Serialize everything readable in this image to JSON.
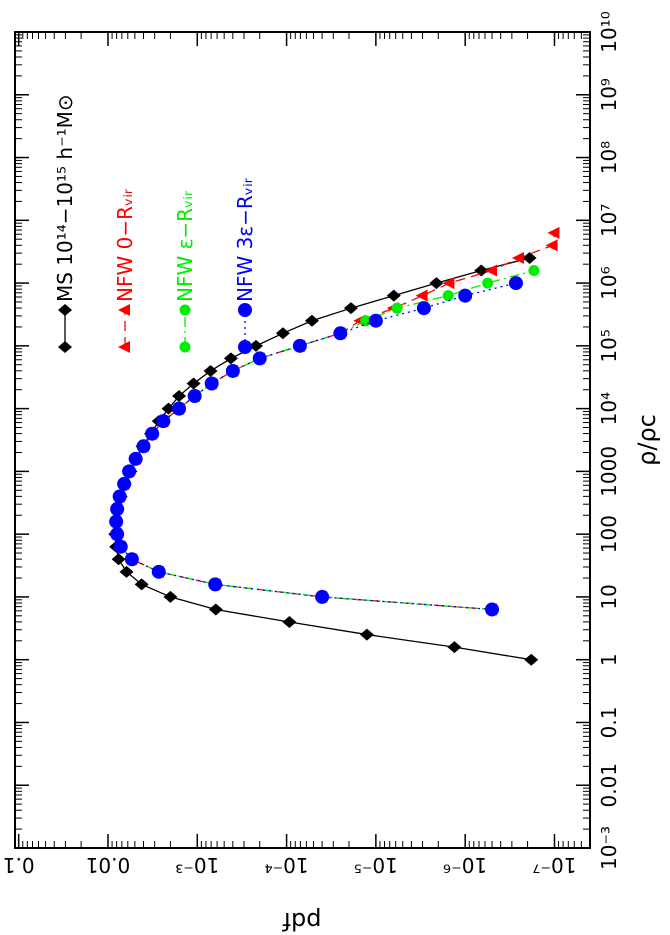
{
  "chart_data": {
    "type": "line",
    "x_label": "ρ/ρc",
    "y_label": "pdf",
    "xlog": true,
    "ylog": true,
    "xlim": [
      0.001,
      10000000000
    ],
    "ylim": [
      4e-08,
      0.11
    ],
    "xticks": [
      {
        "value": 0.001,
        "label": "10⁻³"
      },
      0.01,
      0.1,
      1,
      10,
      100,
      1000,
      {
        "value": 10000,
        "label": "10⁴"
      },
      {
        "value": 100000,
        "label": "10⁵"
      },
      {
        "value": 1000000,
        "label": "10⁶"
      },
      {
        "value": 10000000,
        "label": "10⁷"
      },
      {
        "value": 100000000,
        "label": "10⁸"
      },
      {
        "value": 1000000000,
        "label": "10⁹"
      },
      {
        "value": 10000000000,
        "label": "10¹⁰"
      }
    ],
    "yticks": [
      {
        "value": 1e-07,
        "label": "10⁻⁷"
      },
      {
        "value": 1e-06,
        "label": "10⁻⁶"
      },
      {
        "value": 1e-05,
        "label": "10⁻⁵"
      },
      {
        "value": 0.0001,
        "label": "10⁻⁴"
      },
      {
        "value": 0.001,
        "label": "10⁻³"
      },
      0.01,
      0.1
    ],
    "legend": "top-left",
    "series": [
      {
        "name": "MS 10¹⁴−10¹⁵ h⁻¹M⊙",
        "color": "#000000",
        "line": "solid",
        "marker": "diamond",
        "x": [
          1,
          1.585,
          2.512,
          3.981,
          6.31,
          10,
          15.85,
          25.12,
          39.81,
          63.1,
          100,
          158.5,
          251.2,
          398.1,
          631,
          1000,
          1585,
          2512,
          3981,
          6310,
          10000,
          15850,
          25120,
          39810,
          63100,
          100000,
          158500,
          251200,
          398100,
          631000,
          1000000,
          1585000,
          2512000
        ],
        "values": [
          1.82e-07,
          1.32e-06,
          1.26e-05,
          9.3e-05,
          0.00062,
          0.002,
          0.0042,
          0.0062,
          0.0076,
          0.0081,
          0.0083,
          0.0081,
          0.0078,
          0.0072,
          0.0065,
          0.0056,
          0.0049,
          0.0041,
          0.0033,
          0.0027,
          0.0021,
          0.0016,
          0.0011,
          0.00071,
          0.00042,
          0.00022,
          0.00011,
          5.2e-05,
          1.9e-05,
          6.3e-06,
          2.1e-06,
          6.6e-07,
          1.9e-07
        ]
      },
      {
        "name": "NFW 0−Rᵥᵢᵣ",
        "color": "#ff0000",
        "line": "dashed",
        "marker": "triangle",
        "x": [
          6.31,
          10,
          15.85,
          25.12,
          39.81,
          63.1,
          100,
          158.5,
          251.2,
          398.1,
          631,
          1000,
          1585,
          2512,
          3981,
          6310,
          10000,
          15850,
          25120,
          39810,
          63100,
          100000,
          158500,
          251200,
          398100,
          631000,
          1000000,
          1585000,
          2512000,
          3981000,
          6310000
        ],
        "values": [
          5e-07,
          4e-05,
          0.00063,
          0.0027,
          0.0054,
          0.0072,
          0.0079,
          0.0081,
          0.0079,
          0.0074,
          0.0066,
          0.0058,
          0.0049,
          0.004,
          0.0032,
          0.0024,
          0.0016,
          0.00107,
          0.00069,
          0.0004,
          0.0002,
          7.1e-05,
          2.5e-05,
          1.5e-05,
          6.3e-06,
          3e-06,
          1.5e-06,
          5e-07,
          2.5e-07,
          1.05e-07,
          1e-07
        ]
      },
      {
        "name": "NFW ε−Rᵥᵢᵣ",
        "color": "#00ee00",
        "line": "dashdot",
        "marker": "smallcircle",
        "x": [
          6.31,
          10,
          15.85,
          25.12,
          39.81,
          63.1,
          100,
          158.5,
          251.2,
          398.1,
          631,
          1000,
          1585,
          2512,
          3981,
          6310,
          10000,
          15850,
          25120,
          39810,
          63100,
          100000,
          158500,
          251200,
          398100,
          631000,
          1000000,
          1585000
        ],
        "values": [
          5e-07,
          4e-05,
          0.00063,
          0.0027,
          0.0054,
          0.0072,
          0.0079,
          0.0081,
          0.0079,
          0.0074,
          0.0066,
          0.0058,
          0.0049,
          0.004,
          0.0032,
          0.0024,
          0.0016,
          0.00107,
          0.00069,
          0.0004,
          0.0002,
          7.1e-05,
          2.5e-05,
          1.3e-05,
          5.8e-06,
          1.55e-06,
          5.6e-07,
          1.7e-07
        ]
      },
      {
        "name": "NFW 3ε−Rᵥᵢᵣ",
        "color": "#0000ff",
        "line": "dotted",
        "marker": "circle",
        "x": [
          6.31,
          10,
          15.85,
          25.12,
          39.81,
          63.1,
          100,
          158.5,
          251.2,
          398.1,
          631,
          1000,
          1585,
          2512,
          3981,
          6310,
          10000,
          15850,
          25120,
          39810,
          63100,
          100000,
          158500,
          251200,
          398100,
          631000,
          1000000
        ],
        "values": [
          5e-07,
          4e-05,
          0.00063,
          0.0027,
          0.0054,
          0.0072,
          0.0079,
          0.0081,
          0.0079,
          0.0074,
          0.0066,
          0.0058,
          0.0049,
          0.004,
          0.0032,
          0.0024,
          0.0016,
          0.00107,
          0.00069,
          0.0004,
          0.0002,
          7.1e-05,
          2.5e-05,
          1e-05,
          2.9e-06,
          1e-06,
          2.7e-07
        ]
      }
    ]
  }
}
